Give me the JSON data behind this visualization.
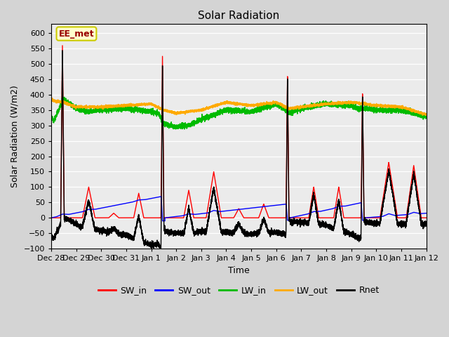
{
  "title": "Solar Radiation",
  "xlabel": "Time",
  "ylabel": "Solar Radiation (W/m2)",
  "ylim": [
    -100,
    630
  ],
  "yticks": [
    -100,
    -50,
    0,
    50,
    100,
    150,
    200,
    250,
    300,
    350,
    400,
    450,
    500,
    550,
    600
  ],
  "plot_bg": "#ebebeb",
  "fig_bg": "#d4d4d4",
  "annotation_text": "EE_met",
  "annotation_bg": "#ffffcc",
  "annotation_border": "#cccc00",
  "series_colors": {
    "SW_in": "#ff0000",
    "SW_out": "#0000ff",
    "LW_in": "#00bb00",
    "LW_out": "#ffaa00",
    "Rnet": "#000000"
  },
  "legend_labels": [
    "SW_in",
    "SW_out",
    "LW_in",
    "LW_out",
    "Rnet"
  ],
  "x_tick_labels": [
    "Dec 28",
    "Dec 29",
    "Dec 30",
    "Dec 31",
    "Jan 1",
    "Jan 2",
    "Jan 3",
    "Jan 4",
    "Jan 5",
    "Jan 6",
    "Jan 7",
    "Jan 8",
    "Jan 9",
    "Jan 10",
    "Jan 11",
    "Jan 12"
  ],
  "x_tick_positions": [
    0,
    1,
    2,
    3,
    4,
    5,
    6,
    7,
    8,
    9,
    10,
    11,
    12,
    13,
    14,
    15
  ]
}
